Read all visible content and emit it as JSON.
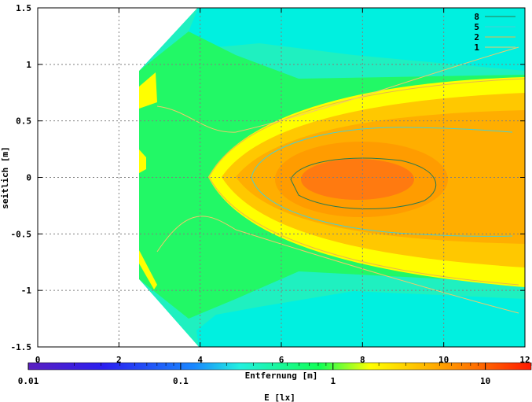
{
  "chart_data": {
    "type": "heatmap",
    "title": "",
    "xlabel": "Entfernung [m]",
    "ylabel": "seitlich [m]",
    "xlim": [
      0,
      12
    ],
    "ylim": [
      -1.5,
      1.5
    ],
    "x_ticks": [
      "0",
      "2",
      "4",
      "6",
      "8",
      "10",
      "12"
    ],
    "x_tick_values": [
      0,
      2,
      4,
      6,
      8,
      10,
      12
    ],
    "y_ticks": [
      "1.5",
      "1",
      "0.5",
      "0",
      "-0.5",
      "-1",
      "-1.5"
    ],
    "y_tick_values": [
      1.5,
      1,
      0.5,
      0,
      -0.5,
      -1,
      -1.5
    ],
    "grid": true,
    "colorbar": {
      "label": "E [lx]",
      "scale": "log",
      "ticks": [
        "0.01",
        "0.1",
        "1",
        "10"
      ],
      "tick_values": [
        0.01,
        0.1,
        1,
        10
      ],
      "range": [
        0.01,
        20
      ]
    },
    "contours": [
      {
        "level": "8",
        "color": "#2a7a50"
      },
      {
        "level": "5",
        "color": "#4ad0d0"
      },
      {
        "level": "2",
        "color": "#e6b84a"
      },
      {
        "level": "1",
        "color": "#f0c86a"
      }
    ],
    "legend_position": "top-right",
    "series": [
      {
        "name": "8"
      },
      {
        "name": "5"
      },
      {
        "name": "2"
      },
      {
        "name": "1"
      }
    ]
  },
  "colors": {
    "low": "#4b1fbf",
    "mid": "#00ff99",
    "high": "#ff2200",
    "grid": "#808080"
  }
}
